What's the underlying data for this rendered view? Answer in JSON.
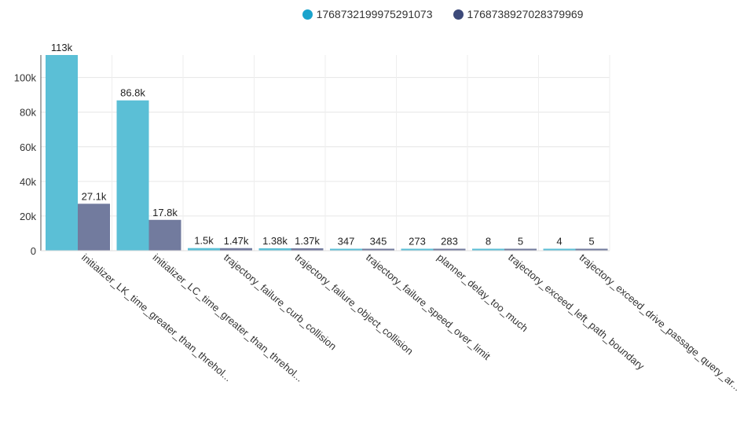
{
  "chart_data": {
    "type": "bar",
    "categories": [
      "initializer_LK_time_greater_than_threhol...",
      "initializer_LC_time_greater_than_threhol...",
      "trajectory_failure_curb_collision",
      "trajectory_failure_object_collision",
      "trajectory_failure_speed_over_limit",
      "planner_delay_too_much",
      "trajectory_exceed_left_path_boundary",
      "trajectory_exceed_drive_passage_query_ar..."
    ],
    "series": [
      {
        "name": "1768732199975291073",
        "color": "#5bbfd6",
        "values": [
          113000,
          86800,
          1500,
          1380,
          347,
          273,
          8,
          4
        ],
        "labels": [
          "113k",
          "86.8k",
          "1.5k",
          "1.38k",
          "347",
          "273",
          "8",
          "4"
        ]
      },
      {
        "name": "1768738927028379969",
        "color": "#727b9e",
        "values": [
          27100,
          17800,
          1470,
          1370,
          345,
          283,
          5,
          5
        ],
        "labels": [
          "27.1k",
          "17.8k",
          "1.47k",
          "1.37k",
          "345",
          "283",
          "5",
          "5"
        ]
      }
    ],
    "yticks": [
      "0",
      "20k",
      "40k",
      "60k",
      "80k",
      "100k"
    ],
    "ytick_values": [
      0,
      20000,
      40000,
      60000,
      80000,
      100000
    ],
    "ylim": [
      0,
      113000
    ],
    "grid": true,
    "legend_position": "top"
  },
  "legend_colors": [
    "#1aa3cc",
    "#3d4a7a"
  ]
}
